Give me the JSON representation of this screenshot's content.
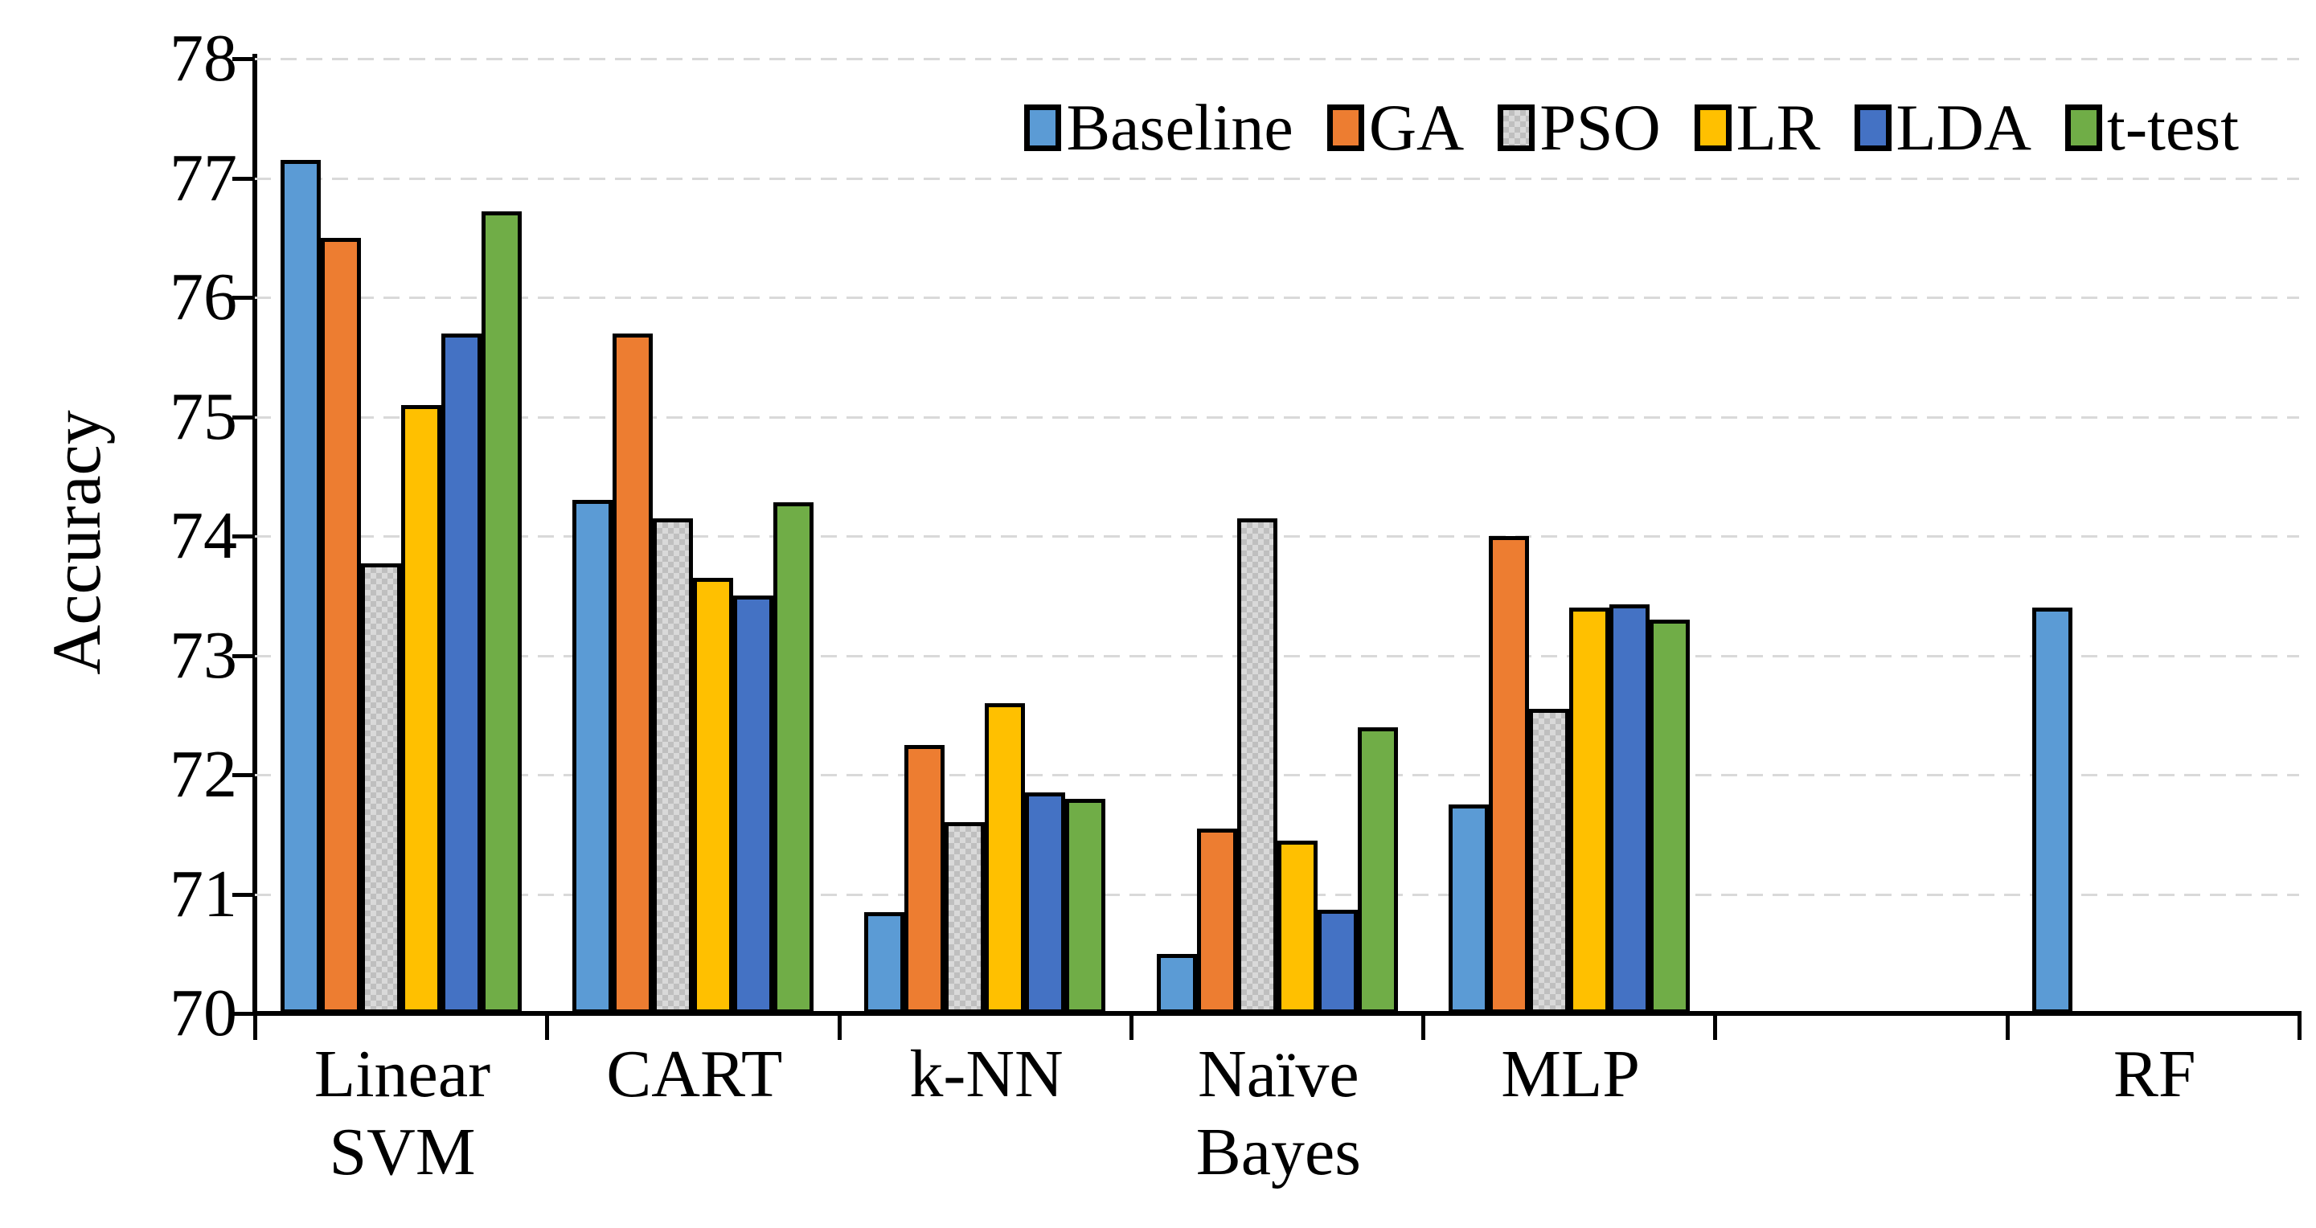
{
  "chart": {
    "y_axis_title": "Accuracy",
    "accent_black": "#000000",
    "gridline_color": "#d9d9d9",
    "legend_position": "top-right",
    "grid": "horizontal-dashed"
  },
  "chart_data": {
    "type": "bar",
    "title": "",
    "xlabel": "",
    "ylabel": "Accuracy",
    "ylim": [
      70,
      78
    ],
    "yticks": [
      70,
      71,
      72,
      73,
      74,
      75,
      76,
      77,
      78
    ],
    "categories": [
      "Linear SVM",
      "CART",
      "k-NN",
      "Naïve Bayes",
      "MLP",
      "",
      "RF"
    ],
    "categories_lines": [
      [
        "Linear",
        "SVM"
      ],
      [
        "CART"
      ],
      [
        "k-NN"
      ],
      [
        "Naïve",
        "Bayes"
      ],
      [
        "MLP"
      ],
      [],
      [
        "RF"
      ]
    ],
    "legend": [
      "Baseline",
      "GA",
      "PSO",
      "LR",
      "LDA",
      "t-test"
    ],
    "series": [
      {
        "name": "Baseline",
        "color": "#5B9BD5",
        "pattern": "solid",
        "values": [
          77.15,
          74.3,
          70.85,
          70.5,
          71.75,
          null,
          73.4
        ]
      },
      {
        "name": "GA",
        "color": "#ED7D31",
        "pattern": "solid",
        "values": [
          76.5,
          75.7,
          72.25,
          71.55,
          74.0,
          null,
          null
        ]
      },
      {
        "name": "PSO",
        "color": "#BFBFBF",
        "pattern": "checker",
        "values": [
          73.77,
          74.15,
          71.6,
          74.15,
          72.55,
          null,
          null
        ]
      },
      {
        "name": "LR",
        "color": "#FFC000",
        "pattern": "solid",
        "values": [
          75.1,
          73.65,
          72.6,
          71.45,
          73.4,
          null,
          null
        ]
      },
      {
        "name": "LDA",
        "color": "#4472C4",
        "pattern": "solid",
        "values": [
          75.7,
          73.5,
          71.85,
          70.87,
          73.43,
          null,
          null
        ]
      },
      {
        "name": "t-test",
        "color": "#70AD47",
        "pattern": "solid",
        "values": [
          76.72,
          74.28,
          71.8,
          72.4,
          73.3,
          null,
          null
        ]
      }
    ]
  }
}
